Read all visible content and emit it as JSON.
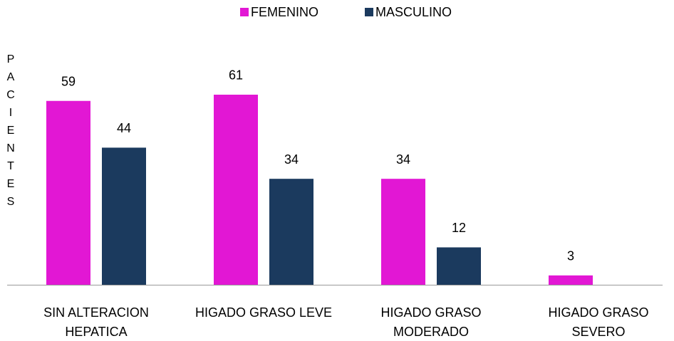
{
  "chart_data": {
    "type": "bar",
    "y_label": "PACIENTES",
    "categories": [
      [
        "SIN ALTERACION",
        "HEPATICA"
      ],
      [
        "HIGADO GRASO LEVE"
      ],
      [
        "HIGADO GRASO",
        "MODERADO"
      ],
      [
        "HIGADO GRASO",
        "SEVERO"
      ]
    ],
    "series": [
      {
        "name": "FEMENINO",
        "color": "#e217d4",
        "values": [
          59,
          61,
          34,
          3
        ]
      },
      {
        "name": "MASCULINO",
        "color": "#1b3a5e",
        "values": [
          44,
          34,
          12,
          null
        ]
      }
    ],
    "ylim": [
      0,
      70
    ],
    "legend": "top"
  }
}
